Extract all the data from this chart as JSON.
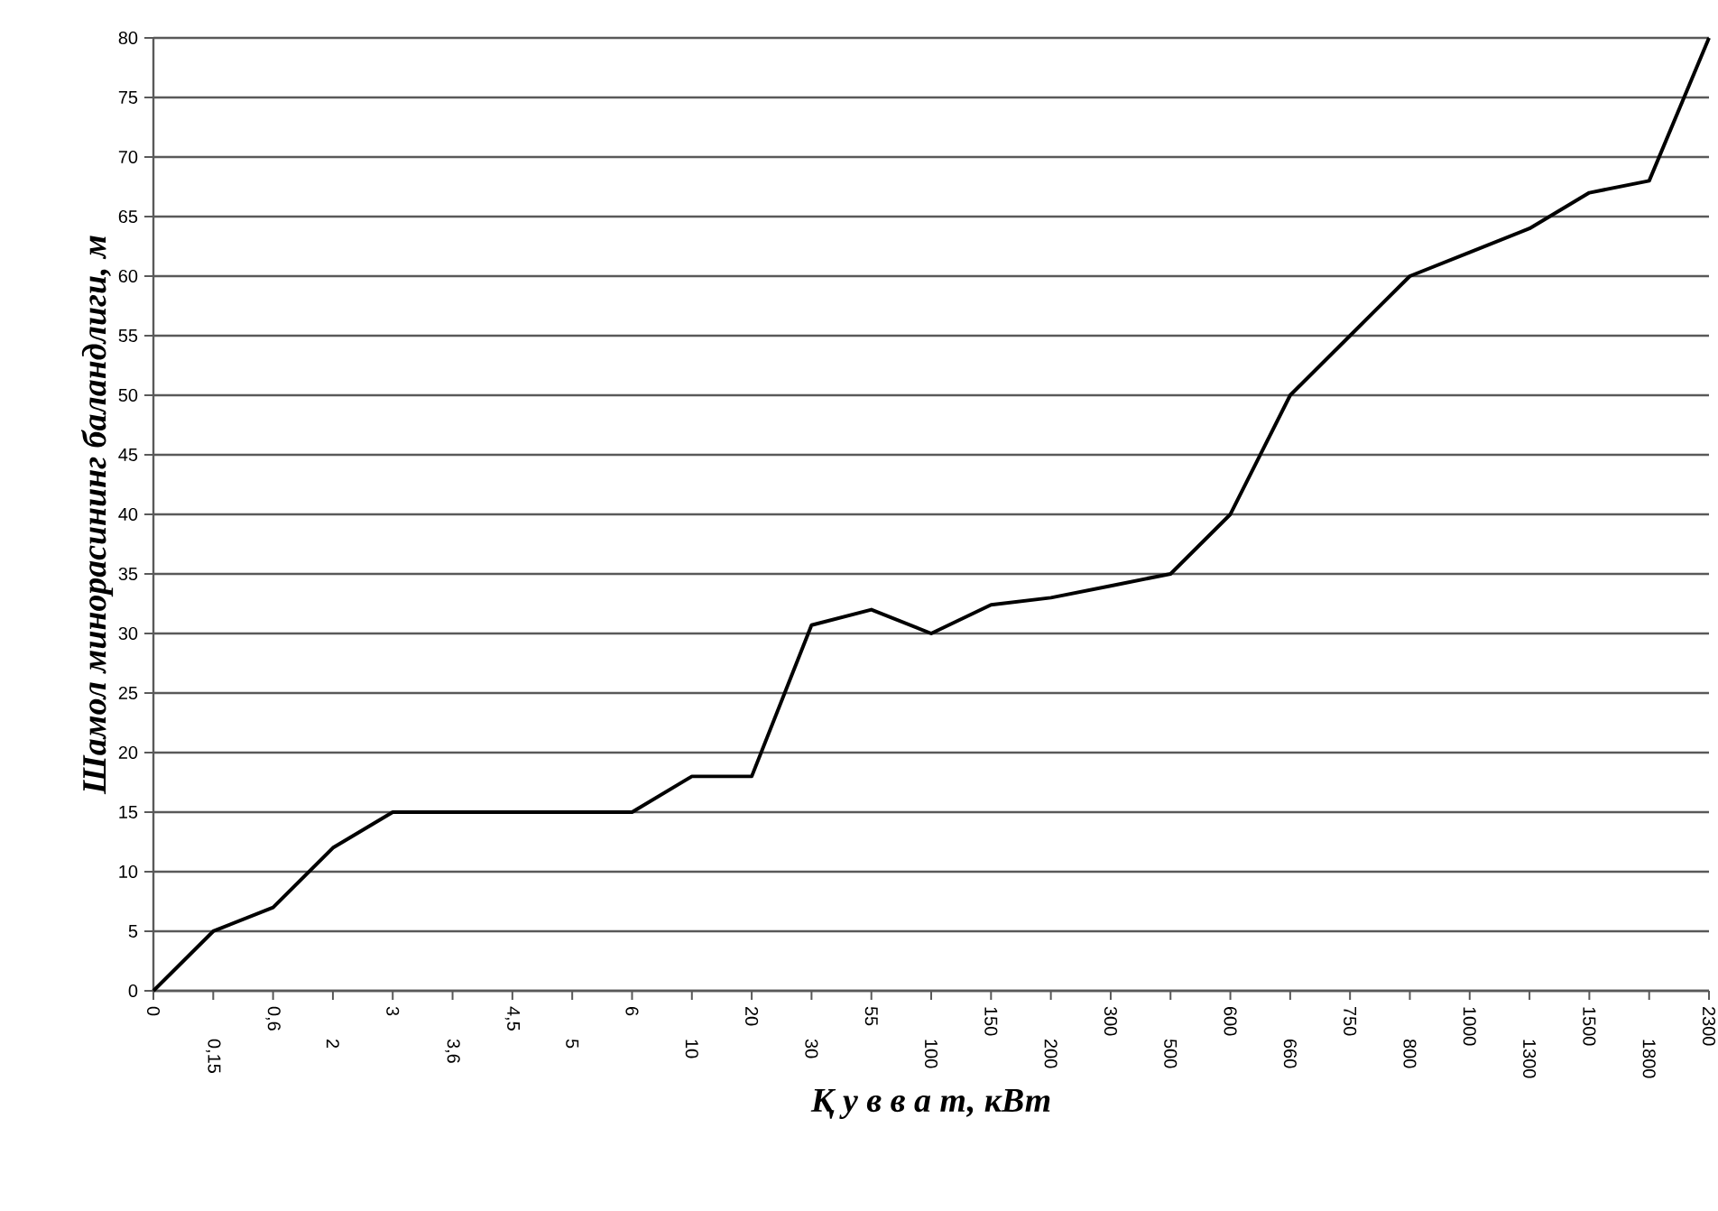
{
  "chart_data": {
    "type": "line",
    "xlabel": "Қ у в в а т, кВт",
    "ylabel": "Шамол минорасининг баландлиги, м",
    "categories": [
      "0",
      "0,15",
      "0,6",
      "2",
      "3",
      "3,6",
      "4,5",
      "5",
      "6",
      "10",
      "20",
      "30",
      "55",
      "100",
      "150",
      "200",
      "300",
      "500",
      "600",
      "660",
      "750",
      "800",
      "1000",
      "1300",
      "1500",
      "1800",
      "2300"
    ],
    "series": [
      {
        "color": "#000000",
        "values": [
          0,
          5,
          7,
          12,
          15,
          15,
          15,
          15,
          15,
          18,
          18,
          30.7,
          32,
          30,
          32.4,
          33,
          34,
          35,
          40,
          50,
          55,
          60,
          62,
          64,
          67,
          68,
          80
        ]
      }
    ],
    "ylim": [
      0,
      80
    ],
    "yticks": [
      0,
      5,
      10,
      15,
      20,
      25,
      30,
      35,
      40,
      45,
      50,
      55,
      60,
      65,
      70,
      75,
      80
    ],
    "grid": "y",
    "marker": "none",
    "line_style": "solid"
  }
}
